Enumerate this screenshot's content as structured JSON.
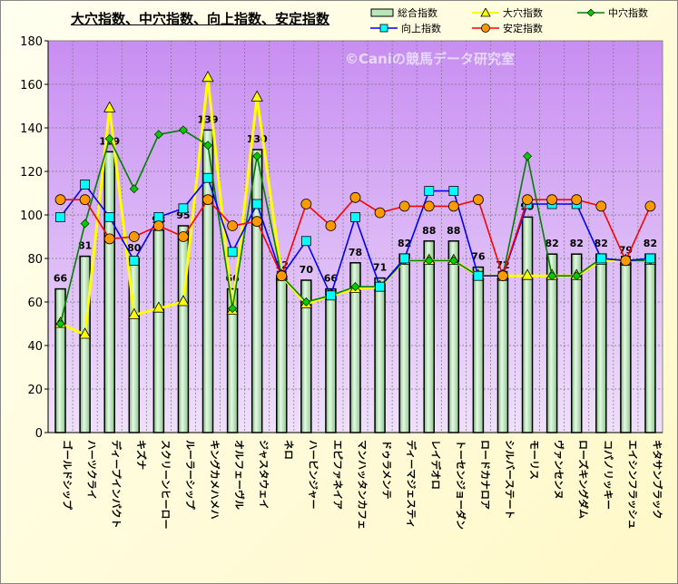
{
  "chart_data": {
    "type": "bar+line",
    "title": "大穴指数、中穴指数、向上指数、安定指数",
    "watermark": "©Caniの競馬データ研究室",
    "ylim": [
      0,
      180
    ],
    "yticks": [
      0,
      20,
      40,
      60,
      80,
      100,
      120,
      140,
      160,
      180
    ],
    "grid": true,
    "legend_position": "top-right",
    "categories": [
      "ゴールドシップ",
      "ハーツクライ",
      "ディープインパクト",
      "キズナ",
      "スクリーンヒーロー",
      "ルーラーシップ",
      "キングカメハメハ",
      "オルフェーヴル",
      "ジャスタウェイ",
      "ネロ",
      "ハービンジャー",
      "エピファネイア",
      "マンハッタンカフェ",
      "ドゥラメンテ",
      "ディーマジェスティ",
      "レイデオロ",
      "トーセンジョーダン",
      "ロードカナロア",
      "シルバーステート",
      "モーリス",
      "ヴァンセンヌ",
      "ローズキングダム",
      "コパノリッキー",
      "エイシンフラッシュ",
      "キタサンブラック"
    ],
    "series": [
      {
        "name": "総合指数",
        "kind": "bar",
        "color": "#b8e8b8",
        "values": [
          66,
          81,
          129,
          80,
          93,
          95,
          139,
          66,
          130,
          72,
          70,
          66,
          78,
          71,
          82,
          88,
          88,
          76,
          72,
          99,
          82,
          82,
          82,
          79,
          82
        ]
      },
      {
        "name": "大穴指数",
        "kind": "line",
        "color": "#ffff00",
        "marker": "triangle",
        "values": [
          50,
          45,
          149,
          54,
          57,
          60,
          163,
          56,
          154,
          72,
          59,
          63,
          66,
          67,
          79,
          79,
          79,
          72,
          72,
          72,
          72,
          72,
          79,
          79,
          79
        ]
      },
      {
        "name": "中穴指数",
        "kind": "line",
        "color": "#008000",
        "marker": "diamond",
        "values": [
          50,
          96,
          135,
          112,
          137,
          139,
          132,
          57,
          127,
          72,
          60,
          63,
          67,
          67,
          79,
          79,
          79,
          72,
          72,
          127,
          72,
          72,
          80,
          79,
          79
        ]
      },
      {
        "name": "向上指数",
        "kind": "line",
        "color": "#0000ff",
        "marker": "square",
        "values": [
          99,
          114,
          99,
          79,
          99,
          103,
          117,
          83,
          105,
          72,
          88,
          63,
          99,
          67,
          80,
          111,
          111,
          72,
          72,
          105,
          105,
          105,
          80,
          79,
          80
        ]
      },
      {
        "name": "安定指数",
        "kind": "line",
        "color": "#ff0000",
        "marker": "circle",
        "values": [
          107,
          107,
          89,
          90,
          95,
          90,
          107,
          95,
          97,
          72,
          105,
          95,
          108,
          101,
          104,
          104,
          104,
          107,
          72,
          107,
          107,
          107,
          104,
          79,
          104
        ]
      }
    ]
  }
}
